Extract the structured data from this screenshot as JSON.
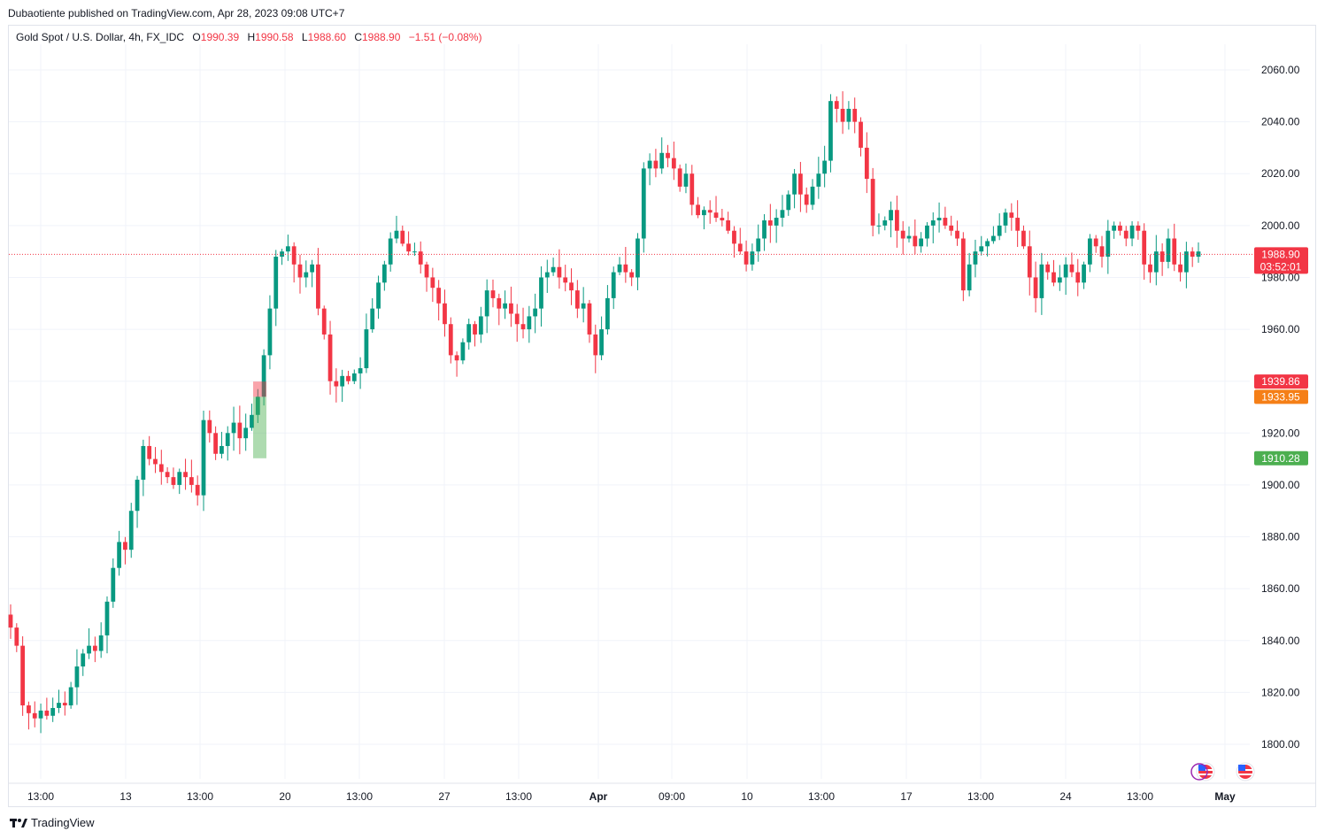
{
  "publisher_line": "Dubaotiente published on TradingView.com, Apr 28, 2023 09:08 UTC+7",
  "brand": "TradingView",
  "legend": {
    "symbol": "Gold Spot / U.S. Dollar, 4h, FX_IDC",
    "o_label": "O",
    "o_value": "1990.39",
    "h_label": "H",
    "h_value": "1990.58",
    "l_label": "L",
    "l_value": "1988.60",
    "c_label": "C",
    "c_value": "1988.90",
    "change": "−1.51 (−0.08%)"
  },
  "colors": {
    "up": "#089981",
    "down": "#f23645",
    "grid": "#f0f3fa",
    "axis_text": "#131722"
  },
  "chart_data": {
    "type": "candlestick",
    "title": "Gold Spot / U.S. Dollar, 4h, FX_IDC",
    "ylim": [
      1790,
      2070
    ],
    "y_ticks": [
      "1800.00",
      "1820.00",
      "1840.00",
      "1860.00",
      "1880.00",
      "1900.00",
      "1920.00",
      "1940.00",
      "1960.00",
      "1980.00",
      "2000.00",
      "2020.00",
      "2040.00",
      "2060.00"
    ],
    "x_ticks": [
      "13:00",
      "13",
      "13:00",
      "20",
      "13:00",
      "27",
      "13:00",
      "Apr",
      "09:00",
      "10",
      "13:00",
      "17",
      "13:00",
      "24",
      "13:00",
      "May"
    ],
    "grid": true,
    "current_price_line": 1988.9,
    "price_labels": [
      {
        "value": 1988.9,
        "text": "1988.90",
        "sub": "03:52:01",
        "color": "#f23645"
      },
      {
        "value": 1939.86,
        "text": "1939.86",
        "color": "#f23645"
      },
      {
        "value": 1933.95,
        "text": "1933.95",
        "color": "#f57f17"
      },
      {
        "value": 1910.28,
        "text": "1910.28",
        "color": "#4caf50"
      }
    ],
    "position_tool": {
      "entry": 1933.95,
      "stop": 1939.86,
      "target": 1910.28
    },
    "close_series": [
      1845,
      1838,
      1815,
      1812,
      1810,
      1813,
      1811,
      1814,
      1816,
      1815,
      1822,
      1830,
      1835,
      1838,
      1836,
      1842,
      1855,
      1868,
      1878,
      1875,
      1890,
      1902,
      1915,
      1910,
      1908,
      1905,
      1903,
      1900,
      1905,
      1903,
      1900,
      1896,
      1925,
      1920,
      1912,
      1915,
      1920,
      1924,
      1918,
      1922,
      1927,
      1934,
      1950,
      1968,
      1988,
      1990,
      1992,
      1985,
      1980,
      1982,
      1985,
      1968,
      1958,
      1940,
      1938,
      1942,
      1940,
      1943,
      1945,
      1960,
      1968,
      1978,
      1985,
      1995,
      1998,
      1993,
      1990,
      1990,
      1985,
      1980,
      1976,
      1970,
      1962,
      1950,
      1948,
      1955,
      1962,
      1958,
      1965,
      1975,
      1972,
      1968,
      1970,
      1966,
      1962,
      1960,
      1965,
      1968,
      1980,
      1982,
      1984,
      1980,
      1978,
      1975,
      1968,
      1970,
      1958,
      1950,
      1960,
      1972,
      1982,
      1985,
      1982,
      1980,
      1995,
      2022,
      2025,
      2022,
      2028,
      2026,
      2022,
      2015,
      2020,
      2008,
      2004,
      2006,
      2005,
      2003,
      2002,
      1998,
      1993,
      1990,
      1985,
      1990,
      1995,
      2002,
      2000,
      2003,
      2006,
      2012,
      2020,
      2012,
      2008,
      2015,
      2020,
      2025,
      2048,
      2045,
      2040,
      2045,
      2040,
      2030,
      2018,
      2000,
      2000,
      2002,
      2006,
      1998,
      1995,
      1996,
      1992,
      1995,
      2000,
      2002,
      2003,
      2000,
      1998,
      1995,
      1975,
      1985,
      1990,
      1992,
      1994,
      1996,
      2000,
      2005,
      2003,
      1998,
      1992,
      1980,
      1972,
      1985,
      1982,
      1978,
      1980,
      1985,
      1982,
      1978,
      1985,
      1995,
      1992,
      1988,
      1998,
      2000,
      1998,
      1995,
      2000,
      1998,
      1985,
      1982,
      1990,
      1986,
      1995,
      1985,
      1982,
      1990,
      1988,
      1990
    ]
  },
  "flags": [
    "us-flag-icon",
    "us-flag-icon"
  ]
}
